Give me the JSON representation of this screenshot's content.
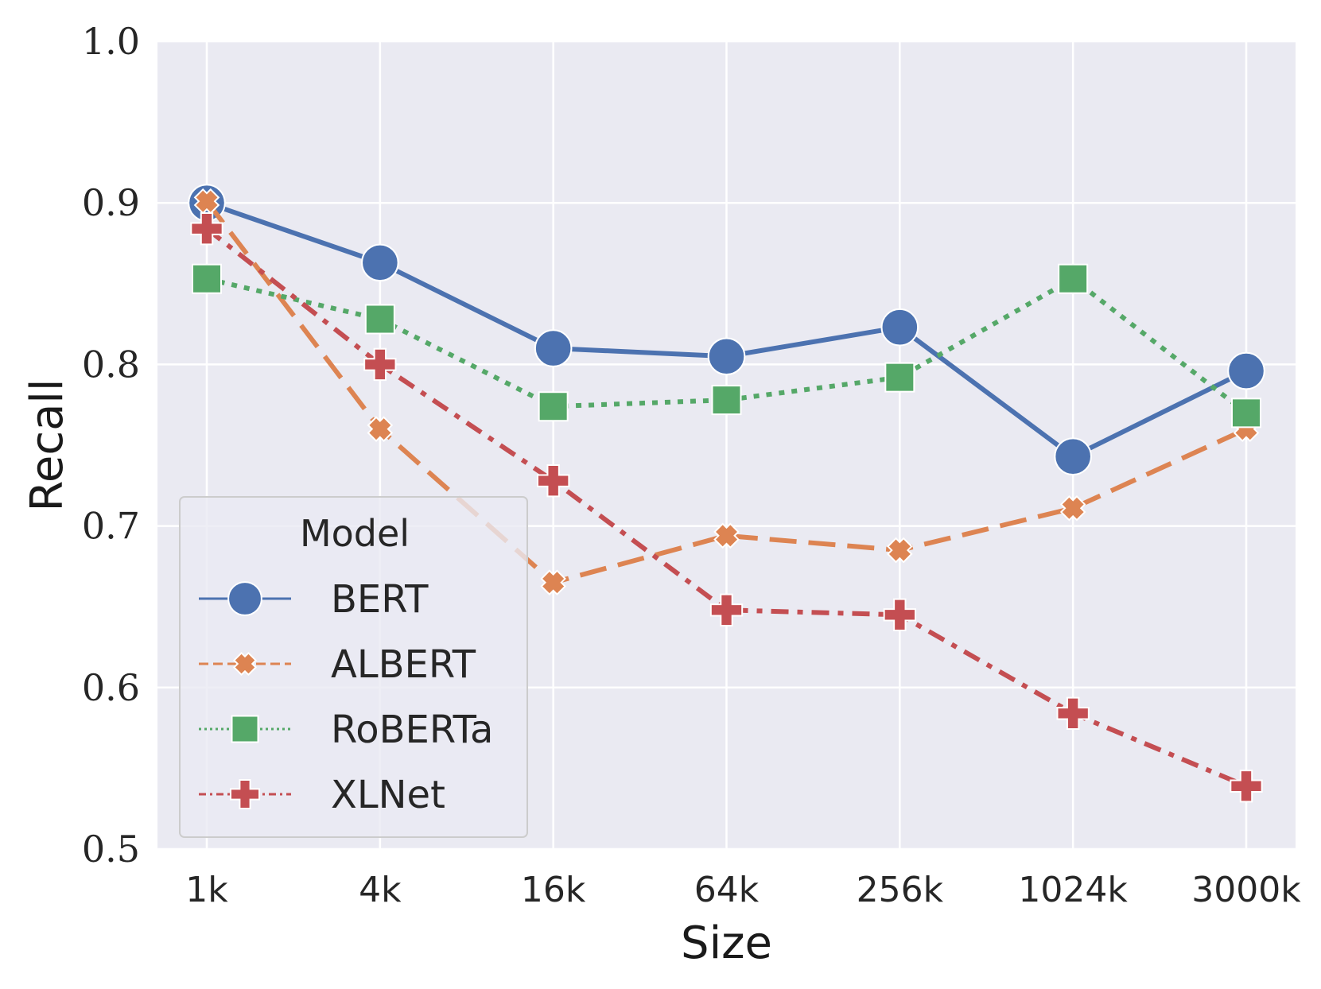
{
  "chart_data": {
    "type": "line",
    "title": "",
    "xlabel": "Size",
    "ylabel": "Recall",
    "categories": [
      "1k",
      "4k",
      "16k",
      "64k",
      "256k",
      "1024k",
      "3000k"
    ],
    "ylim": [
      0.5,
      1.0
    ],
    "yticks": [
      "0.5",
      "0.6",
      "0.7",
      "0.8",
      "0.9",
      "1.0"
    ],
    "grid": true,
    "legend": {
      "title": "Model",
      "placement": "lower-left"
    },
    "series": [
      {
        "name": "BERT",
        "color": "#4c72b0",
        "marker": "circle",
        "linestyle": "solid",
        "values": [
          0.9,
          0.863,
          0.81,
          0.805,
          0.823,
          0.743,
          0.796
        ]
      },
      {
        "name": "ALBERT",
        "color": "#dd8452",
        "marker": "x",
        "linestyle": "dashed",
        "values": [
          0.901,
          0.76,
          0.665,
          0.694,
          0.685,
          0.711,
          0.76
        ]
      },
      {
        "name": "RoBERTa",
        "color": "#55a868",
        "marker": "square",
        "linestyle": "dotted",
        "values": [
          0.853,
          0.828,
          0.774,
          0.778,
          0.792,
          0.853,
          0.77
        ]
      },
      {
        "name": "XLNet",
        "color": "#c44e52",
        "marker": "plus",
        "linestyle": "dashdot",
        "values": [
          0.884,
          0.8,
          0.728,
          0.648,
          0.645,
          0.584,
          0.539
        ]
      }
    ]
  }
}
